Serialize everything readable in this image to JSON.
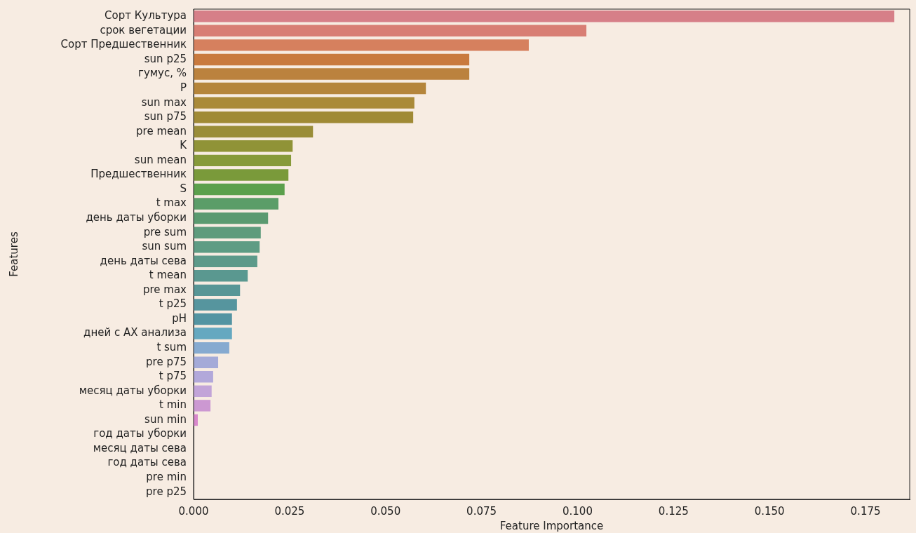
{
  "chart_data": {
    "type": "bar",
    "orientation": "horizontal",
    "xlabel": "Feature Importance",
    "ylabel": "Features",
    "categories": [
      "Сорт Культура",
      "срок вегетации",
      "Сорт Предшественник",
      "sun p25",
      "гумус, %",
      "P",
      "sun max",
      "sun p75",
      "pre mean",
      "K",
      "sun mean",
      "Предшественник",
      "S",
      "t max",
      "день даты уборки",
      "pre sum",
      "sun sum",
      "день даты сева",
      "t mean",
      "pre max",
      "t p25",
      "pH",
      "дней с АХ анализа",
      "t sum",
      "pre p75",
      "t p75",
      "месяц даты уборки",
      "t min",
      "sun min",
      "год даты уборки",
      "месяц даты сева",
      "год даты сева",
      "pre min",
      "pre p25"
    ],
    "values": [
      0.1825,
      0.1023,
      0.0873,
      0.0718,
      0.0718,
      0.0605,
      0.0575,
      0.0572,
      0.0311,
      0.0258,
      0.0254,
      0.0247,
      0.0237,
      0.0221,
      0.0194,
      0.0175,
      0.0172,
      0.0166,
      0.0141,
      0.0121,
      0.0113,
      0.01,
      0.01,
      0.0093,
      0.0064,
      0.0051,
      0.0047,
      0.0044,
      0.0011,
      0,
      0,
      0,
      0,
      0
    ],
    "colors": [
      "#d67f88",
      "#d87e74",
      "#d6805e",
      "#c97a3e",
      "#bb823e",
      "#b5853b",
      "#aa8a38",
      "#a08a35",
      "#9a8d38",
      "#909337",
      "#879a3a",
      "#7a9a3a",
      "#5ba04c",
      "#5b9d68",
      "#5b9a70",
      "#5e9b7c",
      "#5e9c84",
      "#5d9a8a",
      "#5a9890",
      "#589696",
      "#56959e",
      "#5394a2",
      "#65a8c0",
      "#86aad0",
      "#a4aad8",
      "#b2a8da",
      "#c2a4d8",
      "#cc98d2",
      "#d888cc",
      "#d882c4",
      "#d880bc",
      "#d87eb4",
      "#d87cac",
      "#d87aa4"
    ],
    "xlim": [
      0,
      0.1865
    ],
    "xticks": [
      {
        "value": 0,
        "label": "0.000"
      },
      {
        "value": 0.025,
        "label": "0.025"
      },
      {
        "value": 0.05,
        "label": "0.050"
      },
      {
        "value": 0.075,
        "label": "0.075"
      },
      {
        "value": 0.1,
        "label": "0.100"
      },
      {
        "value": 0.125,
        "label": "0.125"
      },
      {
        "value": 0.15,
        "label": "0.150"
      },
      {
        "value": 0.175,
        "label": "0.175"
      }
    ],
    "grid": false,
    "legend": false
  }
}
